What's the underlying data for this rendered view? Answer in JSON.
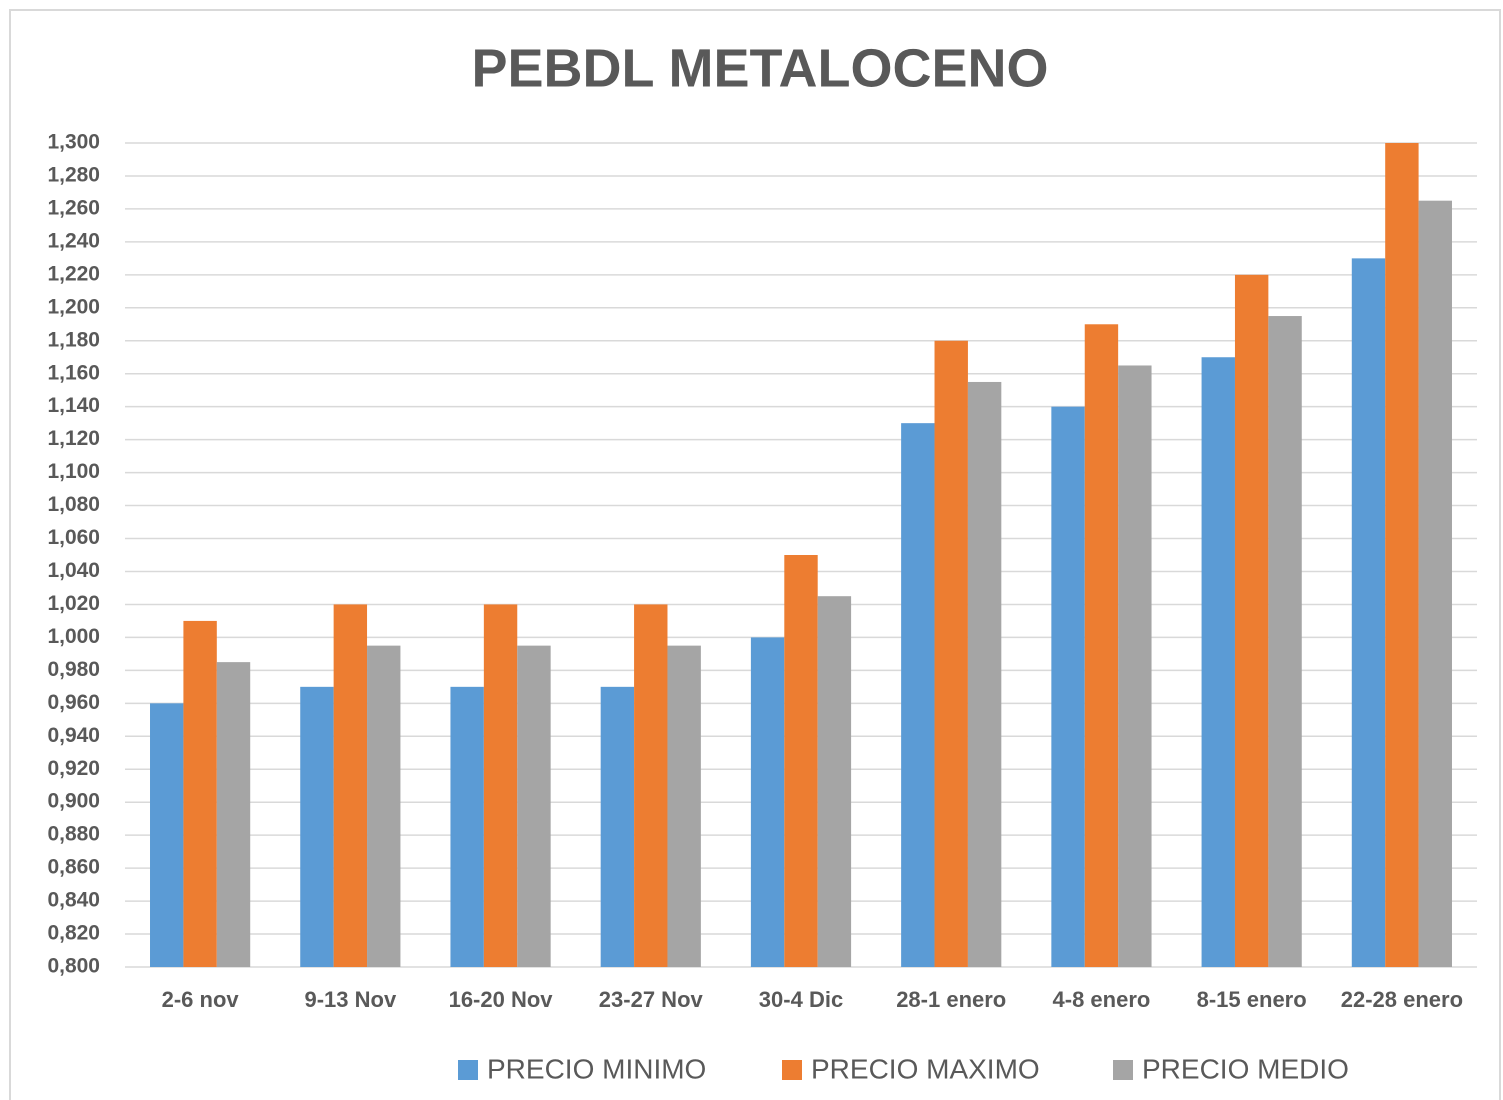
{
  "chart_data": {
    "type": "bar",
    "title": "PEBDL  METALOCENO",
    "categories": [
      "2-6 nov",
      "9-13 Nov",
      "16-20 Nov",
      "23-27 Nov",
      "30-4 Dic",
      "28-1 enero",
      "4-8 enero",
      "8-15 enero",
      "22-28 enero"
    ],
    "series": [
      {
        "name": "PRECIO MINIMO",
        "color": "#5b9bd5",
        "values": [
          0.96,
          0.97,
          0.97,
          0.97,
          1.0,
          1.13,
          1.14,
          1.17,
          1.23
        ]
      },
      {
        "name": "PRECIO MAXIMO",
        "color": "#ed7d31",
        "values": [
          1.01,
          1.02,
          1.02,
          1.02,
          1.05,
          1.18,
          1.19,
          1.22,
          1.3
        ]
      },
      {
        "name": "PRECIO MEDIO",
        "color": "#a5a5a5",
        "values": [
          0.985,
          0.995,
          0.995,
          0.995,
          1.025,
          1.155,
          1.165,
          1.195,
          1.265
        ]
      }
    ],
    "ylim": [
      0.8,
      1.3
    ],
    "yticks": [
      {
        "value": 0.8,
        "label": "0,800"
      },
      {
        "value": 0.82,
        "label": "0,820"
      },
      {
        "value": 0.84,
        "label": "0,840"
      },
      {
        "value": 0.86,
        "label": "0,860"
      },
      {
        "value": 0.88,
        "label": "0,880"
      },
      {
        "value": 0.9,
        "label": "0,900"
      },
      {
        "value": 0.92,
        "label": "0,920"
      },
      {
        "value": 0.94,
        "label": "0,940"
      },
      {
        "value": 0.96,
        "label": "0,960"
      },
      {
        "value": 0.98,
        "label": "0,980"
      },
      {
        "value": 1.0,
        "label": "1,000"
      },
      {
        "value": 1.02,
        "label": "1,020"
      },
      {
        "value": 1.04,
        "label": "1,040"
      },
      {
        "value": 1.06,
        "label": "1,060"
      },
      {
        "value": 1.08,
        "label": "1,080"
      },
      {
        "value": 1.1,
        "label": "1,100"
      },
      {
        "value": 1.12,
        "label": "1,120"
      },
      {
        "value": 1.14,
        "label": "1,140"
      },
      {
        "value": 1.16,
        "label": "1,160"
      },
      {
        "value": 1.18,
        "label": "1,180"
      },
      {
        "value": 1.2,
        "label": "1,200"
      },
      {
        "value": 1.22,
        "label": "1,220"
      },
      {
        "value": 1.24,
        "label": "1,240"
      },
      {
        "value": 1.26,
        "label": "1,260"
      },
      {
        "value": 1.28,
        "label": "1,280"
      },
      {
        "value": 1.3,
        "label": "1,300"
      }
    ],
    "grid": true,
    "legend": "bottom"
  }
}
